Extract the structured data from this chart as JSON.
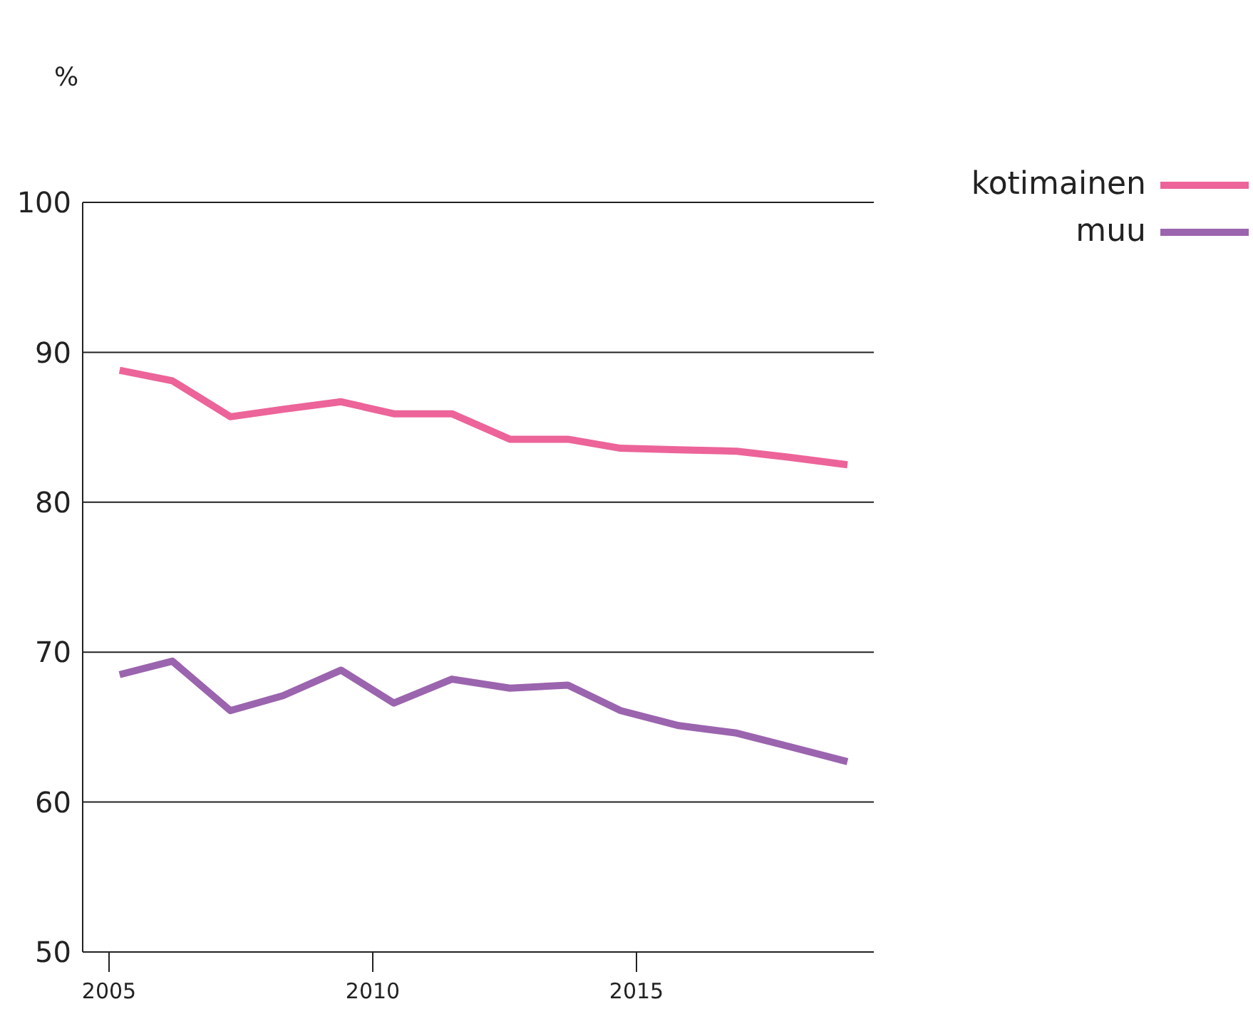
{
  "chart_data": {
    "type": "line",
    "ylabel": "%",
    "x": [
      2005.2,
      2006.2,
      2007.3,
      2008.3,
      2009.4,
      2010.4,
      2011.5,
      2012.6,
      2013.7,
      2014.7,
      2015.8,
      2016.9,
      2017.9,
      2019.0
    ],
    "series": [
      {
        "name": "kotimainen",
        "color": "#ec6499",
        "values": [
          88.8,
          88.1,
          85.7,
          86.2,
          86.7,
          85.9,
          85.9,
          84.2,
          84.2,
          83.6,
          83.5,
          83.4,
          83.0,
          82.5
        ]
      },
      {
        "name": "muu",
        "color": "#9b64ae",
        "values": [
          68.5,
          69.4,
          66.1,
          67.1,
          68.8,
          66.6,
          68.2,
          67.6,
          67.8,
          66.1,
          65.1,
          64.6,
          63.7,
          62.7
        ]
      }
    ],
    "xlim": [
      2004.5,
      2019.5
    ],
    "xticks": [
      2005,
      2010,
      2015
    ],
    "ylim": [
      50,
      100
    ],
    "yticks": [
      50,
      60,
      70,
      80,
      90,
      100
    ],
    "grid": "y",
    "legend": "top right",
    "line_style": "solid",
    "marker": "none"
  }
}
